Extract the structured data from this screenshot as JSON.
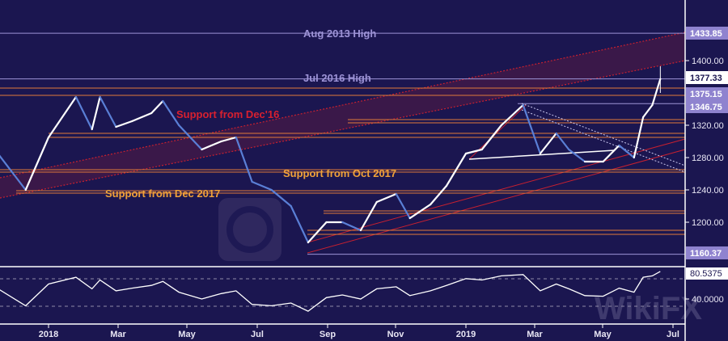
{
  "chart_data": {
    "type": "line",
    "title": "",
    "xlabel": "",
    "ylabel": "",
    "ylim": [
      1140,
      1450
    ],
    "grid": false,
    "x_tick_labels": [
      "2018",
      "Mar",
      "May",
      "Jul",
      "Sep",
      "Nov",
      "2019",
      "Mar",
      "May",
      "Jul"
    ],
    "y_tick_labels": [
      "1400.00",
      "1320.00",
      "1280.00",
      "1240.00",
      "1200.00"
    ],
    "price_labels": [
      {
        "text": "1433.85",
        "value": 1433.85,
        "style": "highlight"
      },
      {
        "text": "1377.33",
        "value": 1377.33,
        "style": "current"
      },
      {
        "text": "1375.15",
        "value": 1375.15,
        "style": "highlight"
      },
      {
        "text": "1346.75",
        "value": 1346.75,
        "style": "highlight"
      },
      {
        "text": "1160.37",
        "value": 1160.37,
        "style": "highlight"
      }
    ],
    "annotations": [
      {
        "text": "Aug 2013 High",
        "color": "#9d93d6"
      },
      {
        "text": "Jul 2016 High",
        "color": "#9d93d6"
      },
      {
        "text": "Support from Dec'16",
        "color": "#d8202f"
      },
      {
        "text": "Support from Oct 2017",
        "color": "#f0a23a"
      },
      {
        "text": "Support from Dec 2017",
        "color": "#f0a23a"
      }
    ],
    "series": [
      {
        "x": [
          "2017-11-15",
          "2017-12-12",
          "2018-01-01",
          "2018-01-25",
          "2018-02-08",
          "2018-02-15",
          "2018-03-01",
          "2018-03-15",
          "2018-04-01",
          "2018-04-11",
          "2018-04-25",
          "2018-05-15",
          "2018-06-01",
          "2018-06-14",
          "2018-06-28",
          "2018-07-15",
          "2018-08-01",
          "2018-08-16",
          "2018-09-01",
          "2018-09-15",
          "2018-10-01",
          "2018-10-15",
          "2018-11-01",
          "2018-11-13",
          "2018-12-01",
          "2018-12-15",
          "2019-01-01",
          "2019-01-15",
          "2019-02-01",
          "2019-02-20",
          "2019-03-07",
          "2019-03-21",
          "2019-04-01",
          "2019-04-15",
          "2019-05-01",
          "2019-05-15",
          "2019-05-28",
          "2019-06-05",
          "2019-06-13",
          "2019-06-20"
        ],
        "values": [
          1290,
          1240,
          1305,
          1355,
          1315,
          1355,
          1318,
          1325,
          1335,
          1350,
          1320,
          1290,
          1300,
          1305,
          1250,
          1240,
          1220,
          1175,
          1200,
          1200,
          1190,
          1225,
          1235,
          1205,
          1222,
          1245,
          1285,
          1290,
          1320,
          1345,
          1285,
          1310,
          1290,
          1275,
          1275,
          1295,
          1280,
          1330,
          1345,
          1377.33
        ]
      }
    ],
    "rsi": {
      "y_tick_labels": [
        "80.5375",
        "40.0000"
      ],
      "current": 80.5375,
      "levels": [
        70,
        30
      ],
      "values": [
        58,
        30,
        62,
        72,
        55,
        68,
        52,
        56,
        60,
        66,
        50,
        40,
        48,
        52,
        32,
        30,
        34,
        22,
        42,
        46,
        40,
        55,
        58,
        45,
        52,
        60,
        70,
        68,
        74,
        76,
        52,
        62,
        55,
        45,
        44,
        56,
        50,
        72,
        74,
        80.5375
      ]
    },
    "colors": {
      "background": "#1b1650",
      "price": "#ffffff",
      "down": "#5a7fd6",
      "support_orange": "#e07a3a",
      "channel_red": "#c8202f",
      "highlight_label": "#8f83cf"
    },
    "watermark": "WikiFX"
  }
}
